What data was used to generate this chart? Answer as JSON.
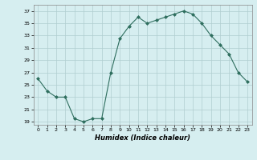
{
  "xlabel": "Humidex (Indice chaleur)",
  "x": [
    0,
    1,
    2,
    3,
    4,
    5,
    6,
    7,
    8,
    9,
    10,
    11,
    12,
    13,
    14,
    15,
    16,
    17,
    18,
    19,
    20,
    21,
    22,
    23
  ],
  "y": [
    26,
    24,
    23,
    23,
    19.5,
    19,
    19.5,
    19.5,
    27,
    32.5,
    34.5,
    36,
    35,
    35.5,
    36,
    36.5,
    37,
    36.5,
    35,
    33,
    31.5,
    30,
    27,
    25.5
  ],
  "line_color": "#2e6e5e",
  "bg_color": "#d6eef0",
  "grid_color": "#b0cdd0",
  "yticks": [
    19,
    21,
    23,
    25,
    27,
    29,
    31,
    33,
    35,
    37
  ],
  "xticks": [
    0,
    1,
    2,
    3,
    4,
    5,
    6,
    7,
    8,
    9,
    10,
    11,
    12,
    13,
    14,
    15,
    16,
    17,
    18,
    19,
    20,
    21,
    22,
    23
  ],
  "ylim": [
    18.5,
    38
  ],
  "xlim": [
    -0.5,
    23.5
  ]
}
